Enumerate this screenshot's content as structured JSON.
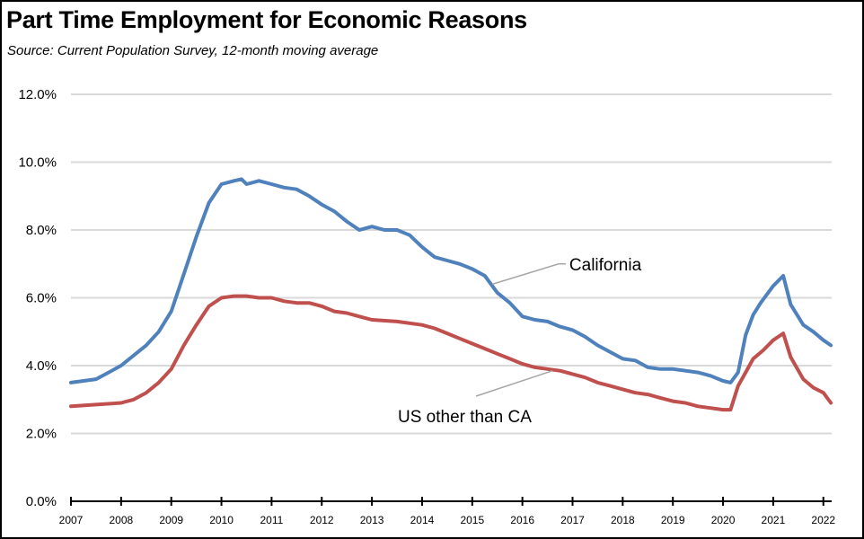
{
  "chart_data": {
    "type": "line",
    "title": "Part Time Employment for Economic Reasons",
    "subtitle": "Source:  Current Population Survey, 12-month moving average",
    "xlabel": "",
    "ylabel": "",
    "xlim": [
      2007,
      2022.15
    ],
    "ylim": [
      0,
      12
    ],
    "grid": true,
    "legend": "none (inline annotations)",
    "y_ticks": [
      {
        "value": 0,
        "label": "0.0%"
      },
      {
        "value": 2,
        "label": "2.0%"
      },
      {
        "value": 4,
        "label": "4.0%"
      },
      {
        "value": 6,
        "label": "6.0%"
      },
      {
        "value": 8,
        "label": "8.0%"
      },
      {
        "value": 10,
        "label": "10.0%"
      },
      {
        "value": 12,
        "label": "12.0%"
      }
    ],
    "x_ticks": [
      {
        "value": 2007,
        "label": "2007"
      },
      {
        "value": 2008,
        "label": "2008"
      },
      {
        "value": 2009,
        "label": "2009"
      },
      {
        "value": 2010,
        "label": "2010"
      },
      {
        "value": 2011,
        "label": "2011"
      },
      {
        "value": 2012,
        "label": "2012"
      },
      {
        "value": 2013,
        "label": "2013"
      },
      {
        "value": 2014,
        "label": "2014"
      },
      {
        "value": 2015,
        "label": "2015"
      },
      {
        "value": 2016,
        "label": "2016"
      },
      {
        "value": 2017,
        "label": "2017"
      },
      {
        "value": 2018,
        "label": "2018"
      },
      {
        "value": 2019,
        "label": "2019"
      },
      {
        "value": 2020,
        "label": "2020"
      },
      {
        "value": 2021,
        "label": "2021"
      },
      {
        "value": 2022,
        "label": "2022"
      }
    ],
    "series": [
      {
        "name": "California",
        "color": "#4f81bd",
        "annotation": {
          "label": "California",
          "point_x": 2015.4,
          "point_y": 6.4,
          "label_x": 2016.9,
          "label_y": 7.0
        },
        "x": [
          2007.0,
          2007.25,
          2007.5,
          2007.75,
          2008.0,
          2008.25,
          2008.5,
          2008.75,
          2009.0,
          2009.25,
          2009.5,
          2009.75,
          2010.0,
          2010.25,
          2010.4,
          2010.5,
          2010.75,
          2011.0,
          2011.25,
          2011.5,
          2011.75,
          2012.0,
          2012.25,
          2012.5,
          2012.75,
          2013.0,
          2013.25,
          2013.5,
          2013.75,
          2014.0,
          2014.25,
          2014.5,
          2014.75,
          2015.0,
          2015.25,
          2015.5,
          2015.75,
          2016.0,
          2016.25,
          2016.5,
          2016.75,
          2017.0,
          2017.25,
          2017.5,
          2017.75,
          2018.0,
          2018.25,
          2018.5,
          2018.75,
          2019.0,
          2019.25,
          2019.5,
          2019.75,
          2020.0,
          2020.15,
          2020.3,
          2020.45,
          2020.6,
          2020.75,
          2021.0,
          2021.2,
          2021.35,
          2021.6,
          2021.8,
          2022.0,
          2022.15
        ],
        "values": [
          3.5,
          3.55,
          3.6,
          3.8,
          4.0,
          4.3,
          4.6,
          5.0,
          5.6,
          6.7,
          7.8,
          8.8,
          9.35,
          9.45,
          9.5,
          9.35,
          9.45,
          9.35,
          9.25,
          9.2,
          9.0,
          8.75,
          8.55,
          8.25,
          8.0,
          8.1,
          8.0,
          8.0,
          7.85,
          7.5,
          7.2,
          7.1,
          7.0,
          6.85,
          6.65,
          6.15,
          5.85,
          5.45,
          5.35,
          5.3,
          5.15,
          5.05,
          4.85,
          4.6,
          4.4,
          4.2,
          4.15,
          3.95,
          3.9,
          3.9,
          3.85,
          3.8,
          3.7,
          3.55,
          3.5,
          3.8,
          4.9,
          5.5,
          5.85,
          6.35,
          6.65,
          5.8,
          5.2,
          5.0,
          4.75,
          4.6
        ]
      },
      {
        "name": "US other than CA",
        "color": "#c0504d",
        "annotation": {
          "label": "US other than CA",
          "point_x": 2016.6,
          "point_y": 3.85,
          "label_x": 2013.2,
          "label_y": 2.6
        },
        "x": [
          2007.0,
          2007.5,
          2008.0,
          2008.25,
          2008.5,
          2008.75,
          2009.0,
          2009.25,
          2009.5,
          2009.75,
          2010.0,
          2010.25,
          2010.5,
          2010.75,
          2011.0,
          2011.25,
          2011.5,
          2011.75,
          2012.0,
          2012.25,
          2012.5,
          2012.75,
          2013.0,
          2013.5,
          2014.0,
          2014.25,
          2014.5,
          2014.75,
          2015.0,
          2015.25,
          2015.5,
          2015.75,
          2016.0,
          2016.25,
          2016.5,
          2016.75,
          2017.0,
          2017.25,
          2017.5,
          2017.75,
          2018.0,
          2018.25,
          2018.5,
          2018.75,
          2019.0,
          2019.25,
          2019.5,
          2019.75,
          2020.0,
          2020.15,
          2020.3,
          2020.45,
          2020.6,
          2020.8,
          2021.0,
          2021.2,
          2021.35,
          2021.6,
          2021.8,
          2022.0,
          2022.15
        ],
        "values": [
          2.8,
          2.85,
          2.9,
          3.0,
          3.2,
          3.5,
          3.9,
          4.6,
          5.2,
          5.75,
          6.0,
          6.05,
          6.05,
          6.0,
          6.0,
          5.9,
          5.85,
          5.85,
          5.75,
          5.6,
          5.55,
          5.45,
          5.35,
          5.3,
          5.2,
          5.1,
          4.95,
          4.8,
          4.65,
          4.5,
          4.35,
          4.2,
          4.05,
          3.95,
          3.9,
          3.85,
          3.75,
          3.65,
          3.5,
          3.4,
          3.3,
          3.2,
          3.15,
          3.05,
          2.95,
          2.9,
          2.8,
          2.75,
          2.7,
          2.7,
          3.4,
          3.8,
          4.2,
          4.45,
          4.75,
          4.95,
          4.25,
          3.6,
          3.35,
          3.2,
          2.9
        ]
      }
    ]
  }
}
